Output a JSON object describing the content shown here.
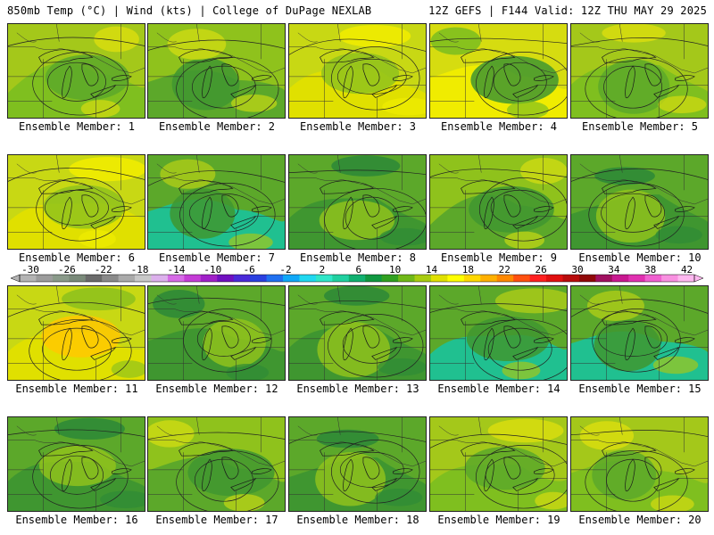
{
  "header": {
    "left": "850mb Temp (°C) | Wind (kts) | College of DuPage NEXLAB",
    "right": "12Z GEFS | F144 Valid: 12Z THU MAY 29 2025"
  },
  "colorbar": {
    "labels": [
      "-30",
      "-26",
      "-22",
      "-18",
      "-14",
      "-10",
      "-6",
      "-2",
      "2",
      "6",
      "10",
      "14",
      "18",
      "22",
      "26",
      "30",
      "34",
      "38",
      "42"
    ],
    "colors": [
      "#b4b4b4",
      "#9c9c9c",
      "#8a9a8a",
      "#7a8a7a",
      "#6a6a6a",
      "#8a8a8a",
      "#aaaaaa",
      "#c8c8c8",
      "#dcb0ec",
      "#d66ae6",
      "#c43cd6",
      "#a020c8",
      "#7010c0",
      "#4a2ad8",
      "#2a40e0",
      "#2070f0",
      "#10a8f8",
      "#20d8f0",
      "#30e6c8",
      "#20d0a0",
      "#10b070",
      "#109840",
      "#30a020",
      "#70b818",
      "#a8cc10",
      "#e0e000",
      "#ffff00",
      "#ffd800",
      "#ffb000",
      "#ff8800",
      "#ff5010",
      "#ff2020",
      "#e01010",
      "#b80c0c",
      "#900808",
      "#a01060",
      "#c81890",
      "#e030b0",
      "#f060d0",
      "#f890e0",
      "#ffb8f0"
    ]
  },
  "panels": [
    {
      "label": "Ensemble Member: 1",
      "theme": "light"
    },
    {
      "label": "Ensemble Member: 2",
      "theme": "mixed"
    },
    {
      "label": "Ensemble Member: 3",
      "theme": "yellow"
    },
    {
      "label": "Ensemble Member: 4",
      "theme": "yellowdark"
    },
    {
      "label": "Ensemble Member: 5",
      "theme": "light"
    },
    {
      "label": "Ensemble Member: 6",
      "theme": "yellow"
    },
    {
      "label": "Ensemble Member: 7",
      "theme": "teal"
    },
    {
      "label": "Ensemble Member: 8",
      "theme": "dark"
    },
    {
      "label": "Ensemble Member: 9",
      "theme": "mixed"
    },
    {
      "label": "Ensemble Member: 10",
      "theme": "dark"
    },
    {
      "label": "Ensemble Member: 11",
      "theme": "orange"
    },
    {
      "label": "Ensemble Member: 12",
      "theme": "dark"
    },
    {
      "label": "Ensemble Member: 13",
      "theme": "dark"
    },
    {
      "label": "Ensemble Member: 14",
      "theme": "teal"
    },
    {
      "label": "Ensemble Member: 15",
      "theme": "teal"
    },
    {
      "label": "Ensemble Member: 16",
      "theme": "dark"
    },
    {
      "label": "Ensemble Member: 17",
      "theme": "mixed"
    },
    {
      "label": "Ensemble Member: 18",
      "theme": "dark"
    },
    {
      "label": "Ensemble Member: 19",
      "theme": "light"
    },
    {
      "label": "Ensemble Member: 20",
      "theme": "light"
    }
  ]
}
